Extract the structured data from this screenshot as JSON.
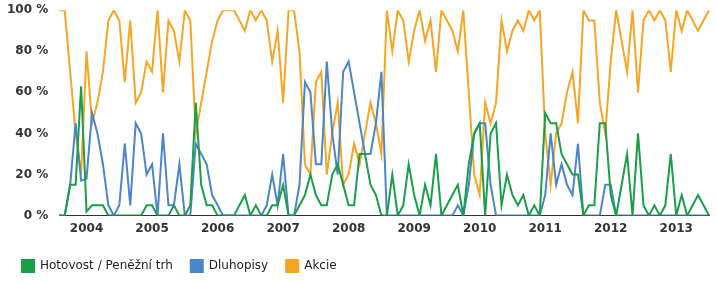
{
  "chart_data": {
    "type": "line",
    "categories": [
      null,
      null,
      null,
      null,
      null,
      "2004",
      null,
      null,
      null,
      null,
      null,
      null,
      null,
      null,
      null,
      null,
      null,
      "2005",
      null,
      null,
      null,
      null,
      null,
      null,
      null,
      null,
      null,
      null,
      null,
      "2006",
      null,
      null,
      null,
      null,
      null,
      null,
      null,
      null,
      null,
      null,
      null,
      "2007",
      null,
      null,
      null,
      null,
      null,
      null,
      null,
      null,
      null,
      null,
      null,
      "2008",
      null,
      null,
      null,
      null,
      null,
      null,
      null,
      null,
      null,
      null,
      null,
      "2009",
      null,
      null,
      null,
      null,
      null,
      null,
      null,
      null,
      null,
      null,
      null,
      "2010",
      null,
      null,
      null,
      null,
      null,
      null,
      null,
      null,
      null,
      null,
      null,
      "2011",
      null,
      null,
      null,
      null,
      null,
      null,
      null,
      null,
      null,
      null,
      null,
      "2012",
      null,
      null,
      null,
      null,
      null,
      null,
      null,
      null,
      null,
      null,
      null,
      "2013",
      null,
      null,
      null,
      null,
      null,
      null
    ],
    "series": [
      {
        "name": "Hotovost / Peněžní trh",
        "color": "#1a9e48",
        "values": [
          0,
          0,
          15,
          15,
          63,
          2,
          5,
          5,
          5,
          0,
          0,
          0,
          0,
          0,
          0,
          0,
          5,
          5,
          0,
          0,
          0,
          5,
          0,
          0,
          5,
          55,
          15,
          5,
          5,
          0,
          0,
          0,
          0,
          5,
          10,
          0,
          5,
          0,
          0,
          5,
          5,
          15,
          0,
          0,
          5,
          10,
          20,
          10,
          5,
          5,
          20,
          25,
          15,
          5,
          5,
          30,
          30,
          15,
          10,
          0,
          0,
          20,
          0,
          5,
          25,
          10,
          0,
          15,
          5,
          30,
          0,
          5,
          10,
          15,
          0,
          25,
          40,
          45,
          0,
          40,
          45,
          5,
          20,
          10,
          5,
          10,
          0,
          5,
          0,
          50,
          45,
          45,
          30,
          25,
          20,
          20,
          0,
          5,
          5,
          45,
          45,
          10,
          0,
          15,
          30,
          0,
          40,
          5,
          0,
          5,
          0,
          5,
          30,
          0,
          10,
          0,
          5,
          10,
          5,
          0
        ]
      },
      {
        "name": "Dluhopisy",
        "color": "#4a86c8",
        "values": [
          0,
          0,
          15,
          45,
          17,
          18,
          50,
          40,
          25,
          5,
          0,
          5,
          35,
          5,
          45,
          40,
          20,
          25,
          0,
          40,
          5,
          5,
          25,
          0,
          0,
          35,
          30,
          25,
          10,
          5,
          0,
          0,
          0,
          0,
          0,
          0,
          0,
          0,
          5,
          20,
          5,
          30,
          0,
          0,
          15,
          65,
          60,
          25,
          25,
          75,
          40,
          20,
          70,
          75,
          60,
          45,
          30,
          30,
          45,
          70,
          0,
          0,
          0,
          0,
          0,
          0,
          0,
          0,
          0,
          0,
          0,
          0,
          0,
          5,
          0,
          15,
          40,
          45,
          45,
          15,
          0,
          0,
          0,
          0,
          0,
          0,
          0,
          0,
          0,
          10,
          40,
          15,
          25,
          15,
          10,
          35,
          0,
          0,
          0,
          0,
          15,
          15,
          0,
          0,
          0,
          0,
          0,
          0,
          0,
          0,
          0,
          0,
          0,
          0,
          0,
          0,
          0,
          0,
          0,
          0
        ]
      },
      {
        "name": "Akcie",
        "color": "#f5a623",
        "values": [
          100,
          100,
          70,
          40,
          20,
          80,
          45,
          55,
          70,
          95,
          100,
          95,
          65,
          95,
          55,
          60,
          75,
          70,
          100,
          60,
          95,
          90,
          75,
          100,
          95,
          40,
          55,
          70,
          85,
          95,
          100,
          100,
          100,
          95,
          90,
          100,
          95,
          100,
          95,
          75,
          90,
          55,
          100,
          100,
          80,
          25,
          20,
          65,
          70,
          20,
          40,
          55,
          15,
          20,
          35,
          25,
          40,
          55,
          45,
          30,
          100,
          80,
          100,
          95,
          75,
          90,
          100,
          85,
          95,
          70,
          100,
          95,
          90,
          80,
          100,
          60,
          20,
          10,
          55,
          45,
          55,
          95,
          80,
          90,
          95,
          90,
          100,
          95,
          100,
          40,
          15,
          40,
          45,
          60,
          70,
          45,
          100,
          95,
          95,
          55,
          40,
          75,
          100,
          85,
          70,
          100,
          60,
          95,
          100,
          95,
          100,
          95,
          70,
          100,
          90,
          100,
          95,
          90,
          95,
          100
        ]
      }
    ],
    "ylim": [
      0,
      100
    ],
    "yticks": [
      {
        "value": 0,
        "label": "0 %"
      },
      {
        "value": 20,
        "label": "20 %"
      },
      {
        "value": 40,
        "label": "40 %"
      },
      {
        "value": 60,
        "label": "60 %"
      },
      {
        "value": 80,
        "label": "80 %"
      },
      {
        "value": 100,
        "label": "100 %"
      }
    ],
    "grid": false,
    "legend": "bottom"
  }
}
